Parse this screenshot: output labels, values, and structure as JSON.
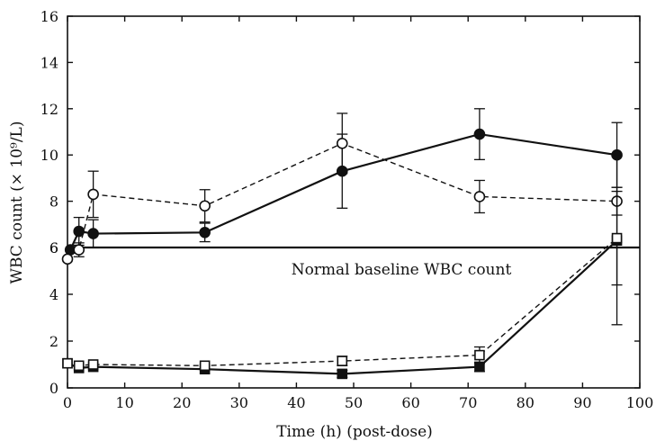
{
  "chart_data": {
    "type": "line",
    "xlabel": "Time (h) (post-dose)",
    "ylabel": "WBC count (× 10⁹/L)",
    "x_ticks": [
      0,
      10,
      20,
      30,
      40,
      50,
      60,
      70,
      80,
      90,
      100
    ],
    "y_tick_labels": [
      "0",
      "2",
      "4",
      "6",
      "6",
      "8",
      "10",
      "12",
      "14",
      "16"
    ],
    "annotation": "Normal baseline WBC count",
    "xlim": [
      0,
      100
    ],
    "upper_panel_ylim": [
      6,
      16
    ],
    "lower_panel_ylim": [
      0,
      6
    ],
    "grid": false,
    "legend": "none",
    "series": [
      {
        "panel": "upper",
        "marker": "filled-circle",
        "line": "solid",
        "points": [
          {
            "x": 0.5,
            "y": 5.9
          },
          {
            "x": 2,
            "y": 6.7,
            "err": 0.6
          },
          {
            "x": 4.5,
            "y": 6.6,
            "err": 0.6
          },
          {
            "x": 24,
            "y": 6.65,
            "err": 0.4
          },
          {
            "x": 48,
            "y": 9.3,
            "err": 1.6
          },
          {
            "x": 72,
            "y": 10.9,
            "err": 1.1
          },
          {
            "x": 96,
            "y": 10.0,
            "err": 1.4
          }
        ]
      },
      {
        "panel": "upper",
        "marker": "open-circle",
        "line": "dashed",
        "points": [
          {
            "x": 0,
            "y": 5.5
          },
          {
            "x": 2,
            "y": 5.9,
            "err": 0.3
          },
          {
            "x": 4.5,
            "y": 8.3,
            "err": 1.0
          },
          {
            "x": 24,
            "y": 7.8,
            "err": 0.7
          },
          {
            "x": 48,
            "y": 10.5,
            "err": 1.3
          },
          {
            "x": 72,
            "y": 8.2,
            "err": 0.7
          },
          {
            "x": 96,
            "y": 8.0,
            "err": 0.6
          }
        ]
      },
      {
        "panel": "lower",
        "marker": "filled-square",
        "line": "solid",
        "points": [
          {
            "x": 0,
            "y": 1.05
          },
          {
            "x": 2,
            "y": 0.85
          },
          {
            "x": 4.5,
            "y": 0.9
          },
          {
            "x": 24,
            "y": 0.8
          },
          {
            "x": 48,
            "y": 0.6,
            "err": 0.15
          },
          {
            "x": 72,
            "y": 0.9,
            "err": 0.2
          },
          {
            "x": 96,
            "y": 6.3,
            "err": 3.6
          }
        ]
      },
      {
        "panel": "lower",
        "marker": "open-square",
        "line": "dashed",
        "points": [
          {
            "x": 0,
            "y": 1.05
          },
          {
            "x": 2,
            "y": 0.95
          },
          {
            "x": 4.5,
            "y": 1.0
          },
          {
            "x": 24,
            "y": 0.95
          },
          {
            "x": 48,
            "y": 1.15,
            "err": 0.2
          },
          {
            "x": 72,
            "y": 1.4,
            "err": 0.35
          },
          {
            "x": 96,
            "y": 6.4,
            "err": 2.0
          }
        ]
      }
    ]
  }
}
